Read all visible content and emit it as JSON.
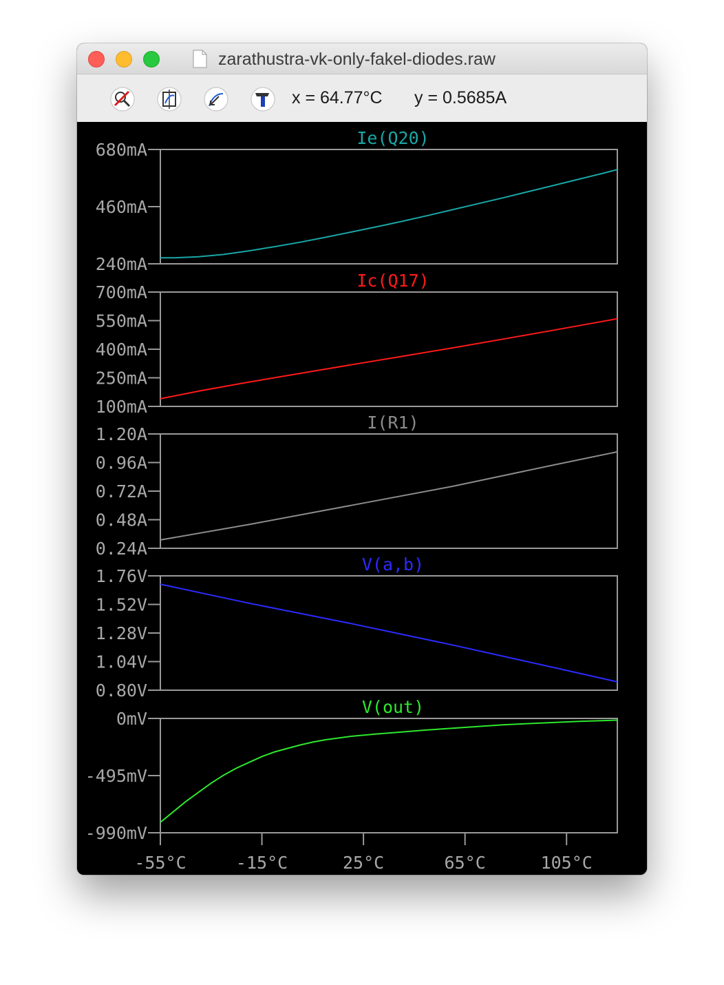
{
  "window": {
    "title": "zarathustra-vk-only-fakel-diodes.raw"
  },
  "toolbar": {
    "buttons": [
      {
        "name": "zoom-off-icon"
      },
      {
        "name": "autoscale-icon"
      },
      {
        "name": "zoom-back-icon"
      },
      {
        "name": "settings-hammer-icon"
      }
    ],
    "cursor_x": "x = 64.77°C",
    "cursor_y": "y = 0.5685A"
  },
  "colors": {
    "background": "#000000",
    "axis": "#9a9a9a",
    "tick_label": "#a8a8a8",
    "Ie_Q20": "#1aa7a7",
    "Ic_Q17": "#ff1a1a",
    "I_R1": "#8c8c8c",
    "V_ab": "#2b2bff",
    "V_out": "#2ee82e"
  },
  "chart_data": [
    {
      "type": "line",
      "title": "Ie(Q20)",
      "color": "#1aa7a7",
      "xlabel": "",
      "ylabel": "",
      "xlim": [
        -55,
        125
      ],
      "ylim": [
        240,
        680
      ],
      "y_ticks": [
        "680mA",
        "460mA",
        "240mA"
      ],
      "y_tick_values": [
        680,
        460,
        240
      ],
      "x": [
        -55,
        -50,
        -40,
        -30,
        -20,
        -10,
        0,
        10,
        20,
        30,
        40,
        50,
        60,
        70,
        80,
        90,
        100,
        110,
        120,
        125
      ],
      "y": [
        263,
        263,
        267,
        276,
        290,
        306,
        323,
        342,
        362,
        382,
        403,
        425,
        448,
        471,
        494,
        518,
        542,
        566,
        590,
        603
      ]
    },
    {
      "type": "line",
      "title": "Ic(Q17)",
      "color": "#ff1a1a",
      "xlabel": "",
      "ylabel": "",
      "xlim": [
        -55,
        125
      ],
      "ylim": [
        100,
        700
      ],
      "y_ticks": [
        "700mA",
        "550mA",
        "400mA",
        "250mA",
        "100mA"
      ],
      "y_tick_values": [
        700,
        550,
        400,
        250,
        100
      ],
      "x": [
        -55,
        -40,
        -20,
        0,
        20,
        40,
        60,
        80,
        100,
        125
      ],
      "y": [
        140,
        180,
        228,
        273,
        318,
        362,
        407,
        453,
        500,
        560
      ]
    },
    {
      "type": "line",
      "title": "I(R1)",
      "color": "#8c8c8c",
      "xlabel": "",
      "ylabel": "",
      "xlim": [
        -55,
        125
      ],
      "ylim": [
        0.24,
        1.2
      ],
      "y_ticks": [
        "1.20A",
        "0.96A",
        "0.72A",
        "0.48A",
        "0.24A"
      ],
      "y_tick_values": [
        1.2,
        0.96,
        0.72,
        0.48,
        0.24
      ],
      "x": [
        -55,
        -20,
        20,
        60,
        100,
        125
      ],
      "y": [
        0.31,
        0.44,
        0.6,
        0.76,
        0.94,
        1.05
      ]
    },
    {
      "type": "line",
      "title": "V(a,b)",
      "color": "#2b2bff",
      "xlabel": "",
      "ylabel": "",
      "xlim": [
        -55,
        125
      ],
      "ylim": [
        0.8,
        1.76
      ],
      "y_ticks": [
        "1.76V",
        "1.52V",
        "1.28V",
        "1.04V",
        "0.80V"
      ],
      "y_tick_values": [
        1.76,
        1.52,
        1.28,
        1.04,
        0.8
      ],
      "x": [
        -55,
        -20,
        20,
        60,
        100,
        125
      ],
      "y": [
        1.69,
        1.53,
        1.36,
        1.18,
        0.99,
        0.87
      ]
    },
    {
      "type": "line",
      "title": "V(out)",
      "color": "#2ee82e",
      "xlabel": "",
      "ylabel": "",
      "xlim": [
        -55,
        125
      ],
      "ylim": [
        -990,
        0
      ],
      "y_ticks": [
        "0mV",
        "-495mV",
        "-990mV"
      ],
      "y_tick_values": [
        0,
        -495,
        -990
      ],
      "x": [
        -55,
        -50,
        -45,
        -40,
        -35,
        -30,
        -25,
        -20,
        -15,
        -10,
        -5,
        0,
        5,
        10,
        15,
        20,
        30,
        40,
        50,
        60,
        70,
        80,
        90,
        100,
        110,
        125
      ],
      "y": [
        -900,
        -810,
        -720,
        -640,
        -560,
        -490,
        -430,
        -380,
        -330,
        -290,
        -260,
        -230,
        -205,
        -185,
        -170,
        -155,
        -135,
        -118,
        -100,
        -85,
        -70,
        -55,
        -45,
        -35,
        -25,
        -15
      ]
    }
  ],
  "x_axis": {
    "ticks": [
      "-55°C",
      "-15°C",
      "25°C",
      "65°C",
      "105°C"
    ],
    "tick_values": [
      -55,
      -15,
      25,
      65,
      105
    ]
  }
}
